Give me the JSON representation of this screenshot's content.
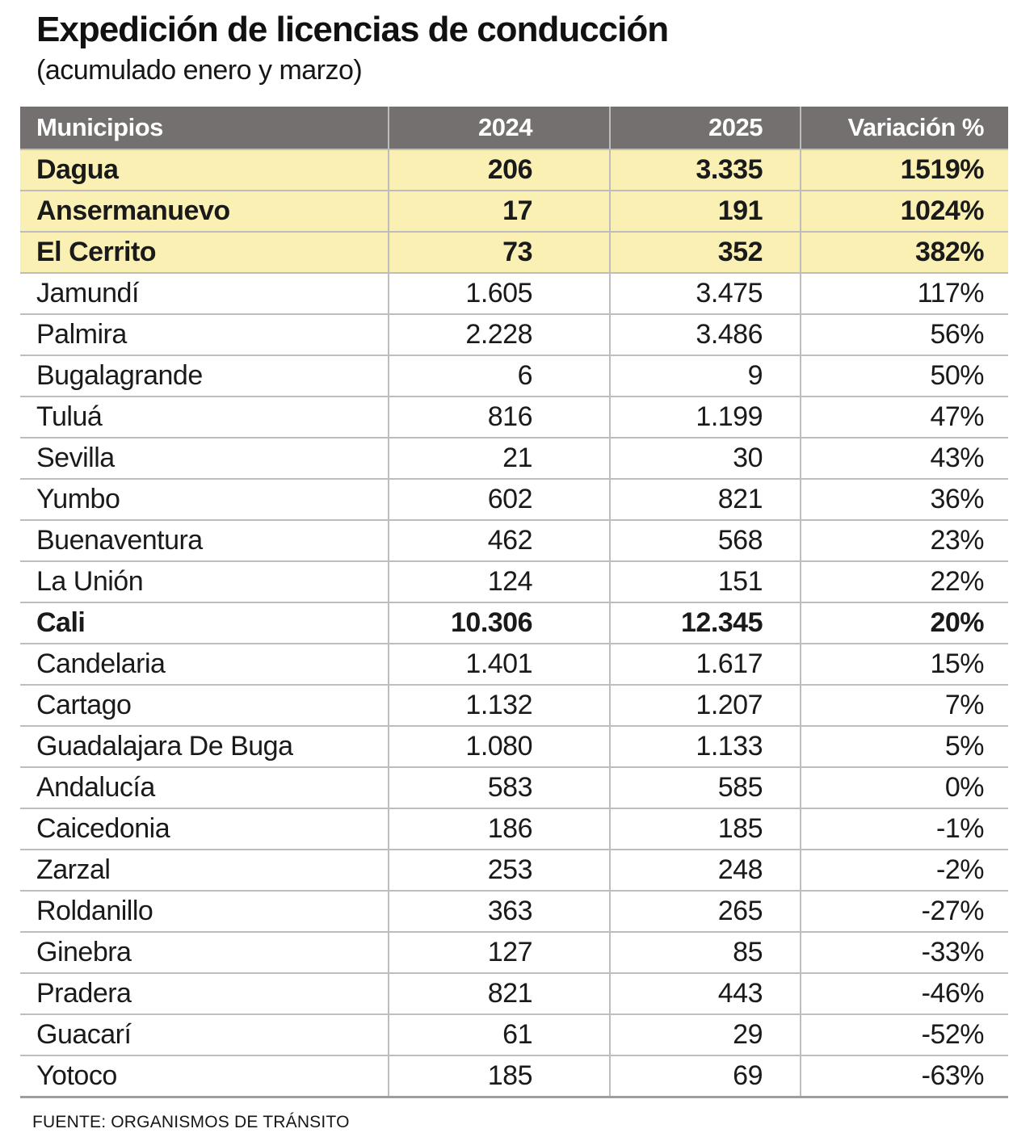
{
  "colors": {
    "header_bg": "#757070",
    "highlight_bg": "#faf0b4",
    "grid_line": "#bdbdbd",
    "bottom_line": "#9e9e9e"
  },
  "chart_data": {
    "type": "table",
    "title": "Expedición de licencias de conducción",
    "subtitle": "(acumulado enero y marzo)",
    "columns": [
      "Municipios",
      "2024",
      "2025",
      "Variación %"
    ],
    "rows": [
      {
        "municipio": "Dagua",
        "y2024": "206",
        "y2025": "3.335",
        "variacion": "1519%",
        "highlight": true,
        "bold": true
      },
      {
        "municipio": "Ansermanuevo",
        "y2024": "17",
        "y2025": "191",
        "variacion": "1024%",
        "highlight": true,
        "bold": true
      },
      {
        "municipio": "El Cerrito",
        "y2024": "73",
        "y2025": "352",
        "variacion": "382%",
        "highlight": true,
        "bold": true
      },
      {
        "municipio": "Jamundí",
        "y2024": "1.605",
        "y2025": "3.475",
        "variacion": "117%",
        "highlight": false,
        "bold": false
      },
      {
        "municipio": "Palmira",
        "y2024": "2.228",
        "y2025": "3.486",
        "variacion": "56%",
        "highlight": false,
        "bold": false
      },
      {
        "municipio": "Bugalagrande",
        "y2024": "6",
        "y2025": "9",
        "variacion": "50%",
        "highlight": false,
        "bold": false
      },
      {
        "municipio": "Tuluá",
        "y2024": "816",
        "y2025": "1.199",
        "variacion": "47%",
        "highlight": false,
        "bold": false
      },
      {
        "municipio": "Sevilla",
        "y2024": "21",
        "y2025": "30",
        "variacion": "43%",
        "highlight": false,
        "bold": false
      },
      {
        "municipio": "Yumbo",
        "y2024": "602",
        "y2025": "821",
        "variacion": "36%",
        "highlight": false,
        "bold": false
      },
      {
        "municipio": "Buenaventura",
        "y2024": "462",
        "y2025": "568",
        "variacion": "23%",
        "highlight": false,
        "bold": false
      },
      {
        "municipio": "La Unión",
        "y2024": "124",
        "y2025": "151",
        "variacion": "22%",
        "highlight": false,
        "bold": false
      },
      {
        "municipio": "Cali",
        "y2024": "10.306",
        "y2025": "12.345",
        "variacion": "20%",
        "highlight": false,
        "bold": true
      },
      {
        "municipio": "Candelaria",
        "y2024": "1.401",
        "y2025": "1.617",
        "variacion": "15%",
        "highlight": false,
        "bold": false
      },
      {
        "municipio": "Cartago",
        "y2024": "1.132",
        "y2025": "1.207",
        "variacion": "7%",
        "highlight": false,
        "bold": false
      },
      {
        "municipio": "Guadalajara De Buga",
        "y2024": "1.080",
        "y2025": "1.133",
        "variacion": "5%",
        "highlight": false,
        "bold": false
      },
      {
        "municipio": "Andalucía",
        "y2024": "583",
        "y2025": "585",
        "variacion": "0%",
        "highlight": false,
        "bold": false
      },
      {
        "municipio": "Caicedonia",
        "y2024": "186",
        "y2025": "185",
        "variacion": "-1%",
        "highlight": false,
        "bold": false
      },
      {
        "municipio": "Zarzal",
        "y2024": "253",
        "y2025": "248",
        "variacion": "-2%",
        "highlight": false,
        "bold": false
      },
      {
        "municipio": "Roldanillo",
        "y2024": "363",
        "y2025": "265",
        "variacion": "-27%",
        "highlight": false,
        "bold": false
      },
      {
        "municipio": "Ginebra",
        "y2024": "127",
        "y2025": "85",
        "variacion": "-33%",
        "highlight": false,
        "bold": false
      },
      {
        "municipio": "Pradera",
        "y2024": "821",
        "y2025": "443",
        "variacion": "-46%",
        "highlight": false,
        "bold": false
      },
      {
        "municipio": "Guacarí",
        "y2024": "61",
        "y2025": "29",
        "variacion": "-52%",
        "highlight": false,
        "bold": false
      },
      {
        "municipio": "Yotoco",
        "y2024": "185",
        "y2025": "69",
        "variacion": "-63%",
        "highlight": false,
        "bold": false
      }
    ],
    "source": "FUENTE: ORGANISMOS DE TRÁNSITO"
  }
}
